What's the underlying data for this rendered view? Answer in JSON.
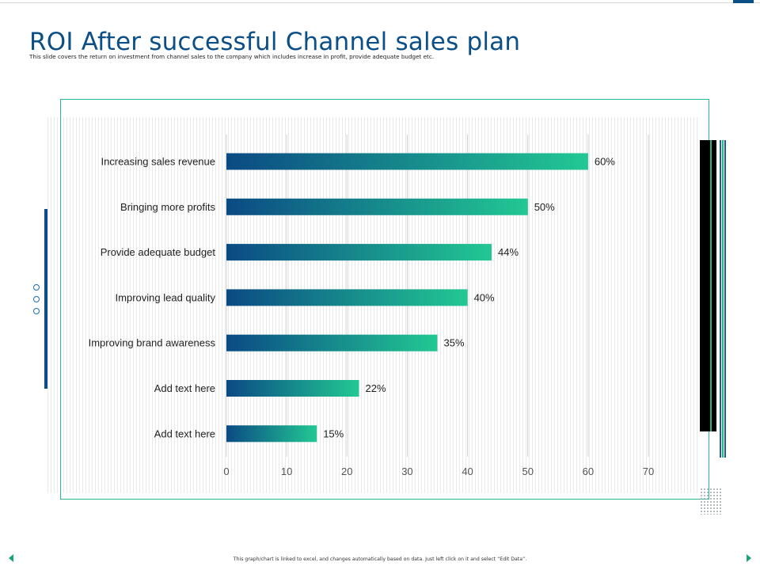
{
  "slide": {
    "title": "ROI After successful Channel sales plan",
    "subtitle": "This slide covers the return on investment from channel sales to the company which includes increase in profit, provide adequate budget etc.",
    "footer_note": "This graph/chart is linked to excel, and changes automatically based on data. Just left click on it and select “Edit Data”."
  },
  "colors": {
    "title": "#0b4f86",
    "bar_start": "#0b4a84",
    "bar_end": "#22c893",
    "frame": "#2bb89a",
    "accent_green": "#1aa37a"
  },
  "chart_data": {
    "type": "bar",
    "orientation": "horizontal",
    "categories": [
      "Increasing sales revenue",
      "Bringing more profits",
      "Provide adequate budget",
      "Improving lead quality",
      "Improving brand awareness",
      "Add text here",
      "Add text here"
    ],
    "values": [
      60,
      50,
      44,
      40,
      35,
      22,
      15
    ],
    "data_labels": [
      "60%",
      "50%",
      "44%",
      "40%",
      "35%",
      "22%",
      "15%"
    ],
    "xlim": [
      0,
      70
    ],
    "xticks": [
      0,
      10,
      20,
      30,
      40,
      50,
      60,
      70
    ],
    "gridlines": true,
    "title": "",
    "xlabel": "",
    "ylabel": ""
  }
}
